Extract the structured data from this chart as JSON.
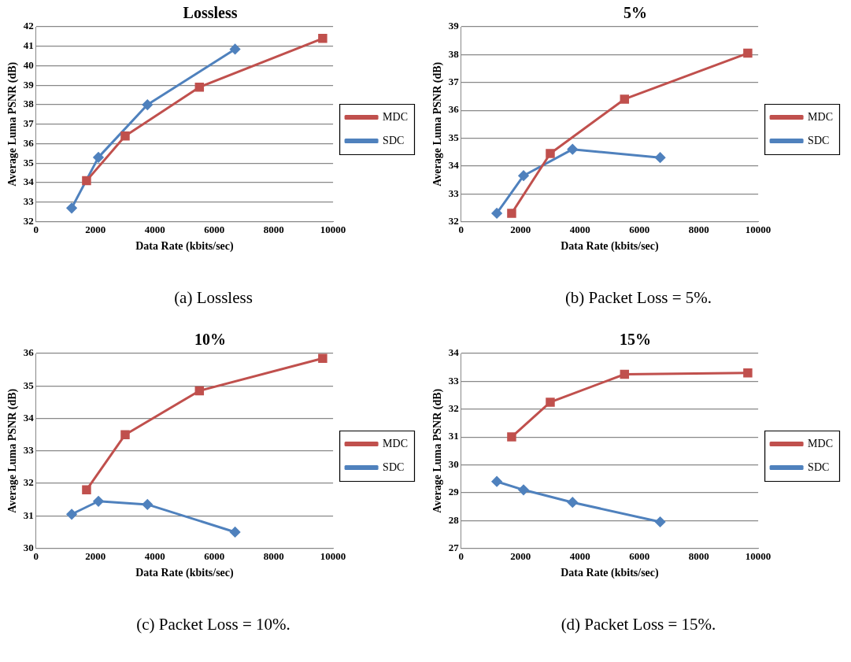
{
  "chart_data": [
    {
      "type": "line",
      "title": "Lossless",
      "xlabel": "Data Rate (kbits/sec)",
      "ylabel": "Average Luma PSNR (dB)",
      "xlim": [
        0,
        10000
      ],
      "xticks": [
        0,
        2000,
        4000,
        6000,
        8000,
        10000
      ],
      "ylim": [
        32,
        42
      ],
      "yticks": [
        32,
        33,
        34,
        35,
        36,
        37,
        38,
        39,
        40,
        41,
        42
      ],
      "grid": "y",
      "legend": "right",
      "line_style": "solid",
      "annotations": [
        "(a) Lossless"
      ],
      "series": [
        {
          "name": "MDC",
          "color": "#c0504d",
          "marker": "square",
          "x": [
            1700,
            3000,
            5500,
            9650
          ],
          "values": [
            34.1,
            36.4,
            38.9,
            41.4
          ]
        },
        {
          "name": "SDC",
          "color": "#4f81bd",
          "marker": "diamond",
          "x": [
            1200,
            2100,
            3750,
            6700
          ],
          "values": [
            32.7,
            35.3,
            38.0,
            40.85
          ]
        }
      ]
    },
    {
      "type": "line",
      "title": "5%",
      "xlabel": "Data Rate (kbits/sec)",
      "ylabel": "Average Luma PSNR (dB)",
      "xlim": [
        0,
        10000
      ],
      "xticks": [
        0,
        2000,
        4000,
        6000,
        8000,
        10000
      ],
      "ylim": [
        32,
        39
      ],
      "yticks": [
        32,
        33,
        34,
        35,
        36,
        37,
        38,
        39
      ],
      "grid": "y",
      "legend": "right",
      "line_style": "solid",
      "annotations": [
        "(b) Packet Loss = 5%."
      ],
      "series": [
        {
          "name": "MDC",
          "color": "#c0504d",
          "marker": "square",
          "x": [
            1700,
            3000,
            5500,
            9650
          ],
          "values": [
            32.3,
            34.45,
            36.4,
            38.05
          ]
        },
        {
          "name": "SDC",
          "color": "#4f81bd",
          "marker": "diamond",
          "x": [
            1200,
            2100,
            3750,
            6700
          ],
          "values": [
            32.3,
            33.65,
            34.6,
            34.3
          ]
        }
      ]
    },
    {
      "type": "line",
      "title": "10%",
      "xlabel": "Data Rate (kbits/sec)",
      "ylabel": "Average Luma PSNR (dB)",
      "xlim": [
        0,
        10000
      ],
      "xticks": [
        0,
        2000,
        4000,
        6000,
        8000,
        10000
      ],
      "ylim": [
        30,
        36
      ],
      "yticks": [
        30,
        31,
        32,
        33,
        34,
        35,
        36
      ],
      "grid": "y",
      "legend": "right",
      "line_style": "solid",
      "annotations": [
        "(c) Packet Loss = 10%."
      ],
      "series": [
        {
          "name": "MDC",
          "color": "#c0504d",
          "marker": "square",
          "x": [
            1700,
            3000,
            5500,
            9650
          ],
          "values": [
            31.8,
            33.5,
            34.85,
            35.85
          ]
        },
        {
          "name": "SDC",
          "color": "#4f81bd",
          "marker": "diamond",
          "x": [
            1200,
            2100,
            3750,
            6700
          ],
          "values": [
            31.05,
            31.45,
            31.35,
            30.5
          ]
        }
      ]
    },
    {
      "type": "line",
      "title": "15%",
      "xlabel": "Data Rate (kbits/sec)",
      "ylabel": "Average Luma PSNR (dB)",
      "xlim": [
        0,
        10000
      ],
      "xticks": [
        0,
        2000,
        4000,
        6000,
        8000,
        10000
      ],
      "ylim": [
        27,
        34
      ],
      "yticks": [
        27,
        28,
        29,
        30,
        31,
        32,
        33,
        34
      ],
      "grid": "y",
      "legend": "right",
      "line_style": "solid",
      "annotations": [
        "(d) Packet Loss = 15%."
      ],
      "series": [
        {
          "name": "MDC",
          "color": "#c0504d",
          "marker": "square",
          "x": [
            1700,
            3000,
            5500,
            9650
          ],
          "values": [
            31.0,
            32.25,
            33.25,
            33.3
          ]
        },
        {
          "name": "SDC",
          "color": "#4f81bd",
          "marker": "diamond",
          "x": [
            1200,
            2100,
            3750,
            6700
          ],
          "values": [
            29.4,
            29.1,
            28.65,
            27.95
          ]
        }
      ]
    }
  ]
}
